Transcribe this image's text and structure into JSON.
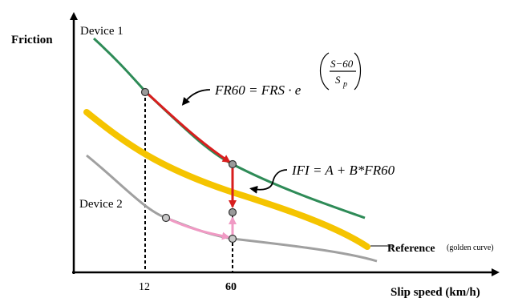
{
  "axes": {
    "y_label": "Friction",
    "x_label": "Slip speed  (km/h)",
    "x_ticks": [
      "12",
      "60"
    ]
  },
  "curves": {
    "device1": {
      "label": "Device 1",
      "color": "#2e8b57"
    },
    "device2": {
      "label": "Device 2",
      "color": "#a0a0a0"
    },
    "reference": {
      "label": "Reference",
      "sublabel": "(golden curve)",
      "color": "#f5c400"
    }
  },
  "formulas": {
    "fr60_lhs": "FR60 = FRS · e",
    "fr60_exp_num": "S−60",
    "fr60_exp_den": "S",
    "fr60_exp_den_sub": "p",
    "ifi": "IFI = A + B*FR60"
  },
  "colors": {
    "red_arrow": "#d81e1e",
    "pink_arrow": "#f09ac4",
    "axis": "#000000"
  }
}
